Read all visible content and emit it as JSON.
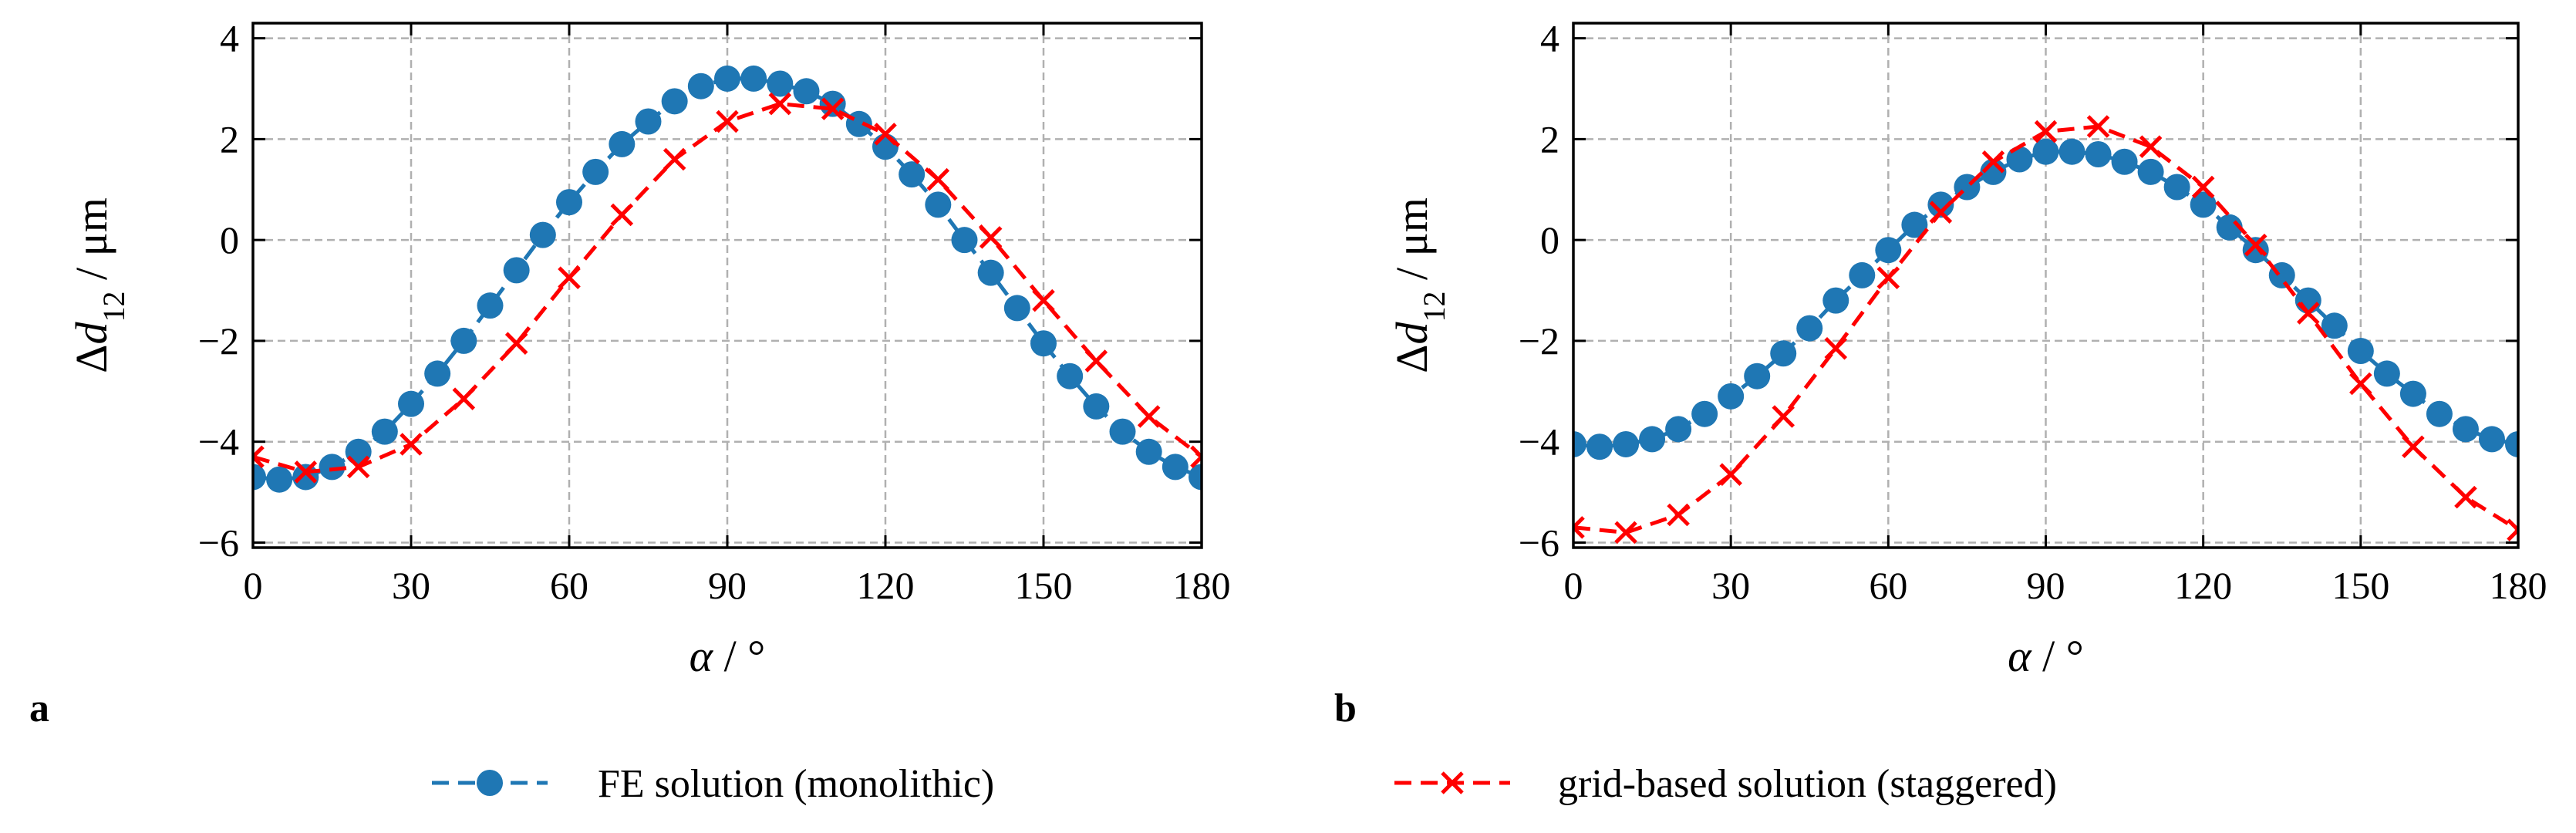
{
  "chart_data": [
    {
      "type": "line",
      "panel_label": "a",
      "xlabel": "α / °",
      "ylabel": "Δd12 / μm",
      "xlim": [
        0,
        180
      ],
      "ylim": [
        -6.1,
        4.3
      ],
      "xticks": [
        0,
        30,
        60,
        90,
        120,
        150,
        180
      ],
      "yticks": [
        -6,
        -4,
        -2,
        0,
        2,
        4
      ],
      "grid": true,
      "series": [
        {
          "name": "FE solution (monolithic)",
          "color": "#1f77b4",
          "marker": "circle",
          "x": [
            0,
            5,
            10,
            15,
            20,
            25,
            30,
            35,
            40,
            45,
            50,
            55,
            60,
            65,
            70,
            75,
            80,
            85,
            90,
            95,
            100,
            105,
            110,
            115,
            120,
            125,
            130,
            135,
            140,
            145,
            150,
            155,
            160,
            165,
            170,
            175,
            180
          ],
          "y": [
            -4.7,
            -4.75,
            -4.7,
            -4.5,
            -4.2,
            -3.8,
            -3.25,
            -2.65,
            -2.0,
            -1.3,
            -0.6,
            0.1,
            0.75,
            1.35,
            1.9,
            2.35,
            2.75,
            3.05,
            3.2,
            3.2,
            3.1,
            2.95,
            2.7,
            2.3,
            1.85,
            1.3,
            0.7,
            0.0,
            -0.65,
            -1.35,
            -2.05,
            -2.7,
            -3.3,
            -3.8,
            -4.2,
            -4.5,
            -4.7
          ]
        },
        {
          "name": "grid-based solution (staggered)",
          "color": "#ff0000",
          "marker": "x",
          "x": [
            0,
            10,
            20,
            30,
            40,
            50,
            60,
            70,
            80,
            90,
            100,
            110,
            120,
            130,
            140,
            150,
            160,
            170,
            180
          ],
          "y": [
            -4.3,
            -4.6,
            -4.5,
            -4.05,
            -3.15,
            -2.05,
            -0.75,
            0.5,
            1.6,
            2.35,
            2.7,
            2.6,
            2.1,
            1.2,
            0.05,
            -1.2,
            -2.4,
            -3.5,
            -4.3
          ]
        }
      ]
    },
    {
      "type": "line",
      "panel_label": "b",
      "xlabel": "α / °",
      "ylabel": "Δd12 / μm",
      "xlim": [
        0,
        180
      ],
      "ylim": [
        -6.1,
        4.3
      ],
      "xticks": [
        0,
        30,
        60,
        90,
        120,
        150,
        180
      ],
      "yticks": [
        -6,
        -4,
        -2,
        0,
        2,
        4
      ],
      "grid": true,
      "series": [
        {
          "name": "FE solution (monolithic)",
          "color": "#1f77b4",
          "marker": "circle",
          "x": [
            0,
            5,
            10,
            15,
            20,
            25,
            30,
            35,
            40,
            45,
            50,
            55,
            60,
            65,
            70,
            75,
            80,
            85,
            90,
            95,
            100,
            105,
            110,
            115,
            120,
            125,
            130,
            135,
            140,
            145,
            150,
            155,
            160,
            165,
            170,
            175,
            180
          ],
          "y": [
            -4.05,
            -4.1,
            -4.05,
            -3.95,
            -3.75,
            -3.45,
            -3.1,
            -2.7,
            -2.25,
            -1.75,
            -1.2,
            -0.7,
            -0.2,
            0.3,
            0.7,
            1.05,
            1.35,
            1.6,
            1.75,
            1.75,
            1.7,
            1.55,
            1.35,
            1.05,
            0.7,
            0.25,
            -0.2,
            -0.7,
            -1.2,
            -1.7,
            -2.2,
            -2.65,
            -3.05,
            -3.45,
            -3.75,
            -3.95,
            -4.05
          ]
        },
        {
          "name": "grid-based solution (staggered)",
          "color": "#ff0000",
          "marker": "x",
          "x": [
            0,
            10,
            20,
            30,
            40,
            50,
            60,
            70,
            80,
            90,
            100,
            110,
            120,
            130,
            140,
            150,
            160,
            170,
            180
          ],
          "y": [
            -5.7,
            -5.8,
            -5.45,
            -4.65,
            -3.5,
            -2.15,
            -0.75,
            0.55,
            1.55,
            2.15,
            2.25,
            1.85,
            1.05,
            -0.1,
            -1.45,
            -2.85,
            -4.1,
            -5.1,
            -5.75
          ]
        }
      ]
    }
  ],
  "legend": {
    "placement": "bottom-center",
    "entries": [
      {
        "label": "FE solution (monolithic)",
        "color": "#1f77b4",
        "marker": "circle"
      },
      {
        "label": "grid-based solution (staggered)",
        "color": "#ff0000",
        "marker": "x"
      }
    ]
  }
}
